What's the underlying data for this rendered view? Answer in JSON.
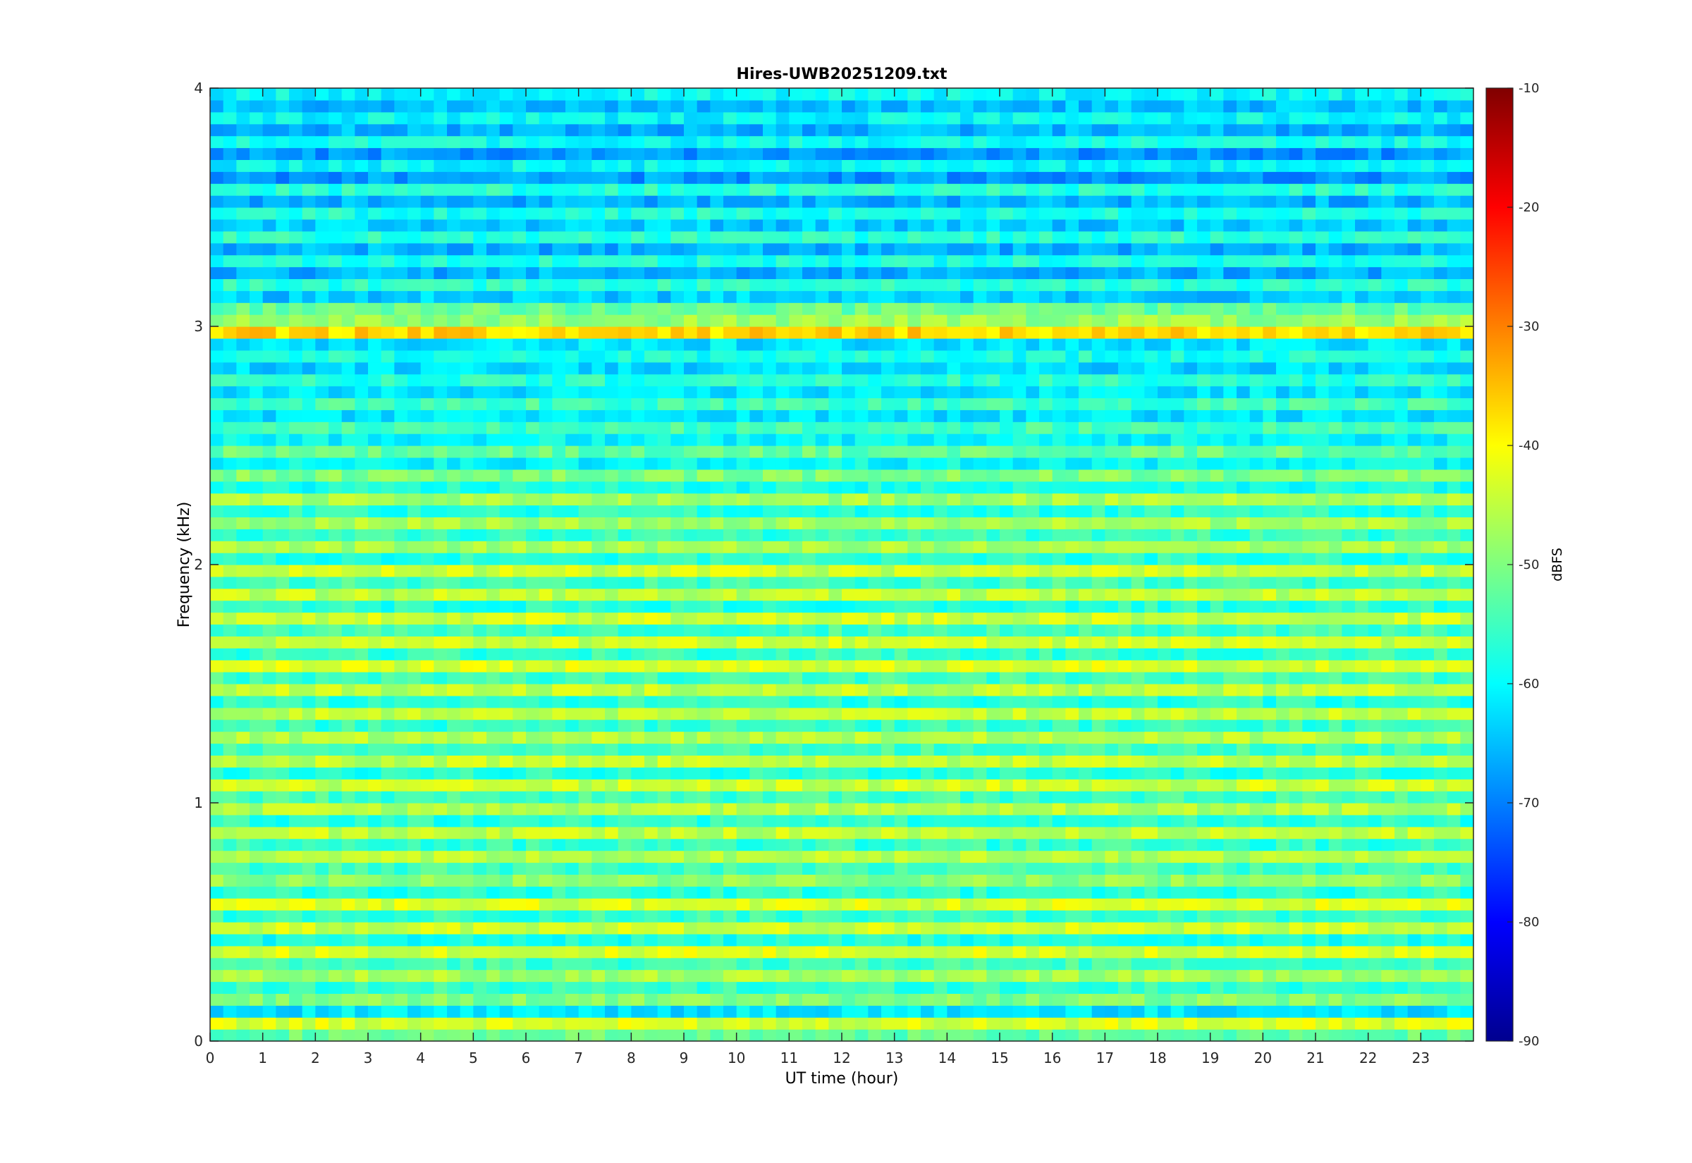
{
  "chart_data": {
    "type": "heatmap",
    "title": "Hires-UWB20251209.txt",
    "xlabel": "UT time (hour)",
    "ylabel": "Frequency (kHz)",
    "colorbar_label": "dBFS",
    "colormap": "jet",
    "xlim": [
      0,
      24
    ],
    "ylim": [
      0,
      4
    ],
    "clim": [
      -90,
      -10
    ],
    "x_ticks": [
      0,
      1,
      2,
      3,
      4,
      5,
      6,
      7,
      8,
      9,
      10,
      11,
      12,
      13,
      14,
      15,
      16,
      17,
      18,
      19,
      20,
      21,
      22,
      23
    ],
    "x_tick_labels": [
      "0",
      "1",
      "2",
      "3",
      "4",
      "5",
      "6",
      "7",
      "8",
      "9",
      "10",
      "11",
      "12",
      "13",
      "14",
      "15",
      "16",
      "17",
      "18",
      "19",
      "20",
      "21",
      "22",
      "23"
    ],
    "y_ticks": [
      0,
      1,
      2,
      3,
      4
    ],
    "y_tick_labels": [
      "0",
      "1",
      "2",
      "3",
      "4"
    ],
    "c_ticks": [
      -90,
      -80,
      -70,
      -60,
      -50,
      -40,
      -30,
      -20,
      -10
    ],
    "c_tick_labels": [
      "-90",
      "-80",
      "-70",
      "-60",
      "-50",
      "-40",
      "-30",
      "-20",
      "-10"
    ],
    "freq_bands_khz": [
      0.0,
      0.05,
      0.1,
      0.15,
      0.2,
      0.25,
      0.3,
      0.35,
      0.4,
      0.45,
      0.5,
      0.55,
      0.6,
      0.65,
      0.7,
      0.75,
      0.8,
      0.85,
      0.9,
      0.95,
      1.0,
      1.05,
      1.1,
      1.15,
      1.2,
      1.25,
      1.3,
      1.35,
      1.4,
      1.45,
      1.5,
      1.55,
      1.6,
      1.65,
      1.7,
      1.75,
      1.8,
      1.85,
      1.9,
      1.95,
      2.0,
      2.05,
      2.1,
      2.15,
      2.2,
      2.25,
      2.3,
      2.35,
      2.4,
      2.45,
      2.5,
      2.55,
      2.6,
      2.65,
      2.7,
      2.75,
      2.8,
      2.85,
      2.9,
      2.95,
      3.0,
      3.05,
      3.1,
      3.15,
      3.2,
      3.25,
      3.3,
      3.35,
      3.4,
      3.45,
      3.5,
      3.55,
      3.6,
      3.65,
      3.7,
      3.75,
      3.8,
      3.85,
      3.9,
      3.95
    ],
    "band_mean_dbfs": [
      -52,
      -43,
      -62,
      -50,
      -56,
      -47,
      -55,
      -43,
      -58,
      -44,
      -56,
      -43,
      -57,
      -49,
      -55,
      -46,
      -56,
      -45,
      -57,
      -46,
      -55,
      -44,
      -57,
      -45,
      -55,
      -46,
      -56,
      -45,
      -57,
      -45,
      -55,
      -43,
      -56,
      -44,
      -55,
      -44,
      -57,
      -45,
      -55,
      -44,
      -57,
      -47,
      -56,
      -47,
      -57,
      -47,
      -58,
      -50,
      -60,
      -52,
      -60,
      -55,
      -62,
      -55,
      -62,
      -57,
      -63,
      -58,
      -62,
      -37,
      -48,
      -52,
      -64,
      -57,
      -66,
      -58,
      -66,
      -57,
      -64,
      -58,
      -66,
      -57,
      -68,
      -60,
      -68,
      -59,
      -66,
      -60,
      -65,
      -60
    ]
  }
}
